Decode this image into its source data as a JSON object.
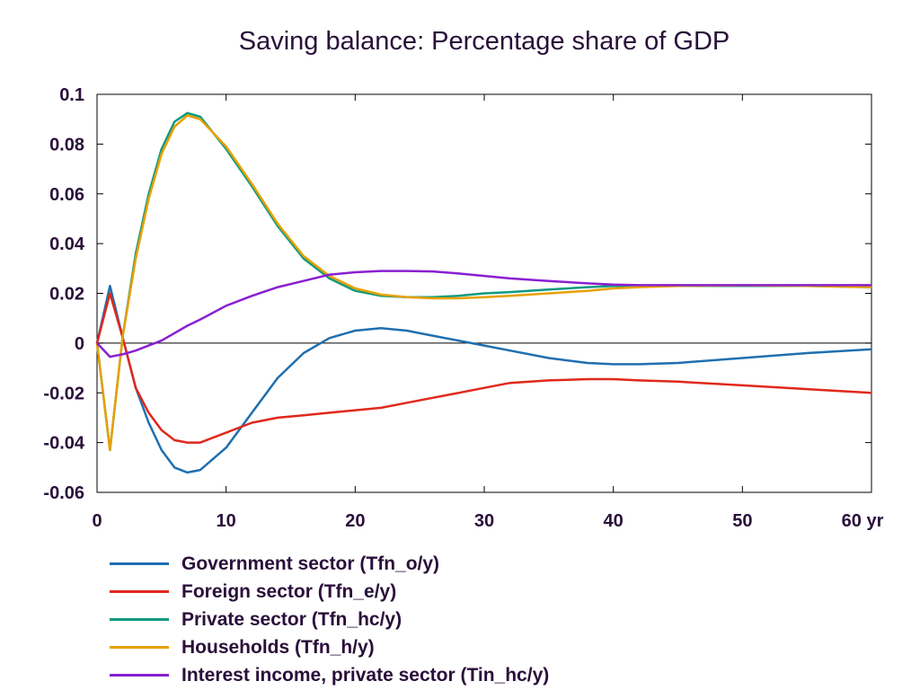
{
  "chart_data": {
    "type": "line",
    "title": "Saving balance: Percentage share of GDP",
    "xlabel": "",
    "ylabel": "",
    "x_unit": "yr",
    "xlim": [
      0,
      60
    ],
    "ylim": [
      -0.06,
      0.1
    ],
    "x_ticks": [
      0,
      10,
      20,
      30,
      40,
      50,
      60
    ],
    "x_tick_labels": [
      "0",
      "10",
      "20",
      "30",
      "40",
      "50",
      "60 yr"
    ],
    "y_ticks": [
      -0.06,
      -0.04,
      -0.02,
      0,
      0.02,
      0.04,
      0.06,
      0.08,
      0.1
    ],
    "y_tick_labels": [
      "-0.06",
      "-0.04",
      "-0.02",
      "0",
      "0.02",
      "0.04",
      "0.06",
      "0.08",
      "0.1"
    ],
    "grid": false,
    "legend_position": "bottom-left",
    "x": [
      0,
      1,
      2,
      3,
      4,
      5,
      6,
      7,
      8,
      10,
      12,
      14,
      16,
      18,
      20,
      22,
      24,
      26,
      28,
      30,
      32,
      35,
      38,
      40,
      42,
      45,
      50,
      55,
      60
    ],
    "series": [
      {
        "name": "Government sector (Tfn_o/y)",
        "color": "#1f6fb0",
        "values": [
          0,
          0.023,
          0.002,
          -0.018,
          -0.032,
          -0.043,
          -0.05,
          -0.052,
          -0.051,
          -0.042,
          -0.028,
          -0.014,
          -0.004,
          0.002,
          0.005,
          0.006,
          0.005,
          0.003,
          0.001,
          -0.001,
          -0.003,
          -0.006,
          -0.008,
          -0.0085,
          -0.0085,
          -0.008,
          -0.006,
          -0.004,
          -0.0025
        ]
      },
      {
        "name": "Foreign sector (Tfn_e/y)",
        "color": "#e0281c",
        "values": [
          0,
          0.02,
          0.002,
          -0.018,
          -0.028,
          -0.035,
          -0.039,
          -0.04,
          -0.04,
          -0.036,
          -0.032,
          -0.03,
          -0.029,
          -0.028,
          -0.027,
          -0.026,
          -0.024,
          -0.022,
          -0.02,
          -0.018,
          -0.016,
          -0.015,
          -0.0145,
          -0.0145,
          -0.015,
          -0.0155,
          -0.017,
          -0.0185,
          -0.02
        ]
      },
      {
        "name": "Private sector (Tfn_hc/y)",
        "color": "#0f9a80",
        "values": [
          0,
          -0.043,
          0.003,
          0.036,
          0.06,
          0.078,
          0.089,
          0.0925,
          0.091,
          0.078,
          0.063,
          0.047,
          0.034,
          0.026,
          0.021,
          0.019,
          0.0185,
          0.0185,
          0.019,
          0.02,
          0.0205,
          0.0215,
          0.0225,
          0.023,
          0.023,
          0.023,
          0.023,
          0.023,
          0.0225
        ]
      },
      {
        "name": "Households (Tfn_h/y)",
        "color": "#e8a000",
        "values": [
          0,
          -0.043,
          0.003,
          0.034,
          0.058,
          0.076,
          0.087,
          0.0915,
          0.09,
          0.079,
          0.064,
          0.048,
          0.035,
          0.027,
          0.022,
          0.0195,
          0.0185,
          0.018,
          0.018,
          0.0185,
          0.019,
          0.02,
          0.021,
          0.022,
          0.0225,
          0.023,
          0.0232,
          0.023,
          0.0225
        ]
      },
      {
        "name": "Interest income, private sector (Tin_hc/y)",
        "color": "#8a1fd0",
        "values": [
          0,
          -0.0055,
          -0.0045,
          -0.003,
          -0.001,
          0.001,
          0.004,
          0.007,
          0.0095,
          0.015,
          0.019,
          0.0225,
          0.025,
          0.0275,
          0.0285,
          0.029,
          0.029,
          0.0288,
          0.028,
          0.027,
          0.026,
          0.025,
          0.024,
          0.0235,
          0.0233,
          0.0233,
          0.0233,
          0.0233,
          0.0233
        ]
      }
    ]
  }
}
